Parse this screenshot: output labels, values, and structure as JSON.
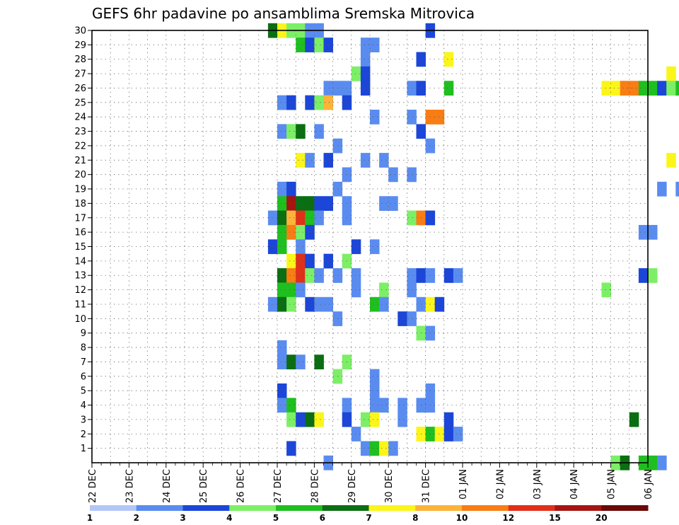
{
  "chart_data": {
    "type": "heatmap",
    "title": "GEFS 6hr padavine po ansamblima Sremska Mitrovica",
    "xlabel": "",
    "ylabel": "",
    "x_tick_labels": [
      "22 DEC",
      "23 DEC",
      "24 DEC",
      "25 DEC",
      "26 DEC",
      "27 DEC",
      "28 DEC",
      "29 DEC",
      "30 DEC",
      "31 DEC",
      "01 JAN",
      "02 JAN",
      "03 JAN",
      "04 JAN",
      "05 JAN",
      "06 JAN"
    ],
    "y_tick_labels": [
      "1",
      "2",
      "3",
      "4",
      "5",
      "6",
      "7",
      "8",
      "9",
      "10",
      "11",
      "12",
      "13",
      "14",
      "15",
      "16",
      "17",
      "18",
      "19",
      "20",
      "21",
      "22",
      "23",
      "24",
      "25",
      "26",
      "27",
      "28",
      "29",
      "30"
    ],
    "ylim": [
      0,
      30
    ],
    "steps_per_day": 4,
    "grid": true,
    "colorbar": {
      "labels": [
        "1",
        "2",
        "3",
        "4",
        "5",
        "6",
        "7",
        "8",
        "10",
        "12",
        "15",
        "20"
      ],
      "colors": [
        "#b3c7f7",
        "#5a8cf0",
        "#1c46d8",
        "#7cef66",
        "#1fbf1f",
        "#0b6e12",
        "#fbf51a",
        "#fcb33a",
        "#f87d14",
        "#e0301a",
        "#a51512",
        "#6a0908"
      ]
    },
    "cells": [
      [
        19,
        30,
        5
      ],
      [
        20,
        30,
        6
      ],
      [
        21,
        30,
        3
      ],
      [
        22,
        30,
        3
      ],
      [
        23,
        30,
        1
      ],
      [
        24,
        30,
        1
      ],
      [
        36,
        30,
        2
      ],
      [
        68,
        30,
        1
      ],
      [
        82,
        30,
        6
      ],
      [
        22,
        29,
        4
      ],
      [
        23,
        29,
        2
      ],
      [
        24,
        29,
        3
      ],
      [
        25,
        29,
        2
      ],
      [
        29,
        29,
        1
      ],
      [
        30,
        29,
        1
      ],
      [
        29,
        28,
        1
      ],
      [
        35,
        28,
        2
      ],
      [
        38,
        28,
        6
      ],
      [
        74,
        28,
        3
      ],
      [
        28,
        27,
        3
      ],
      [
        29,
        27,
        2
      ],
      [
        62,
        27,
        6
      ],
      [
        78,
        27,
        1
      ],
      [
        25,
        26,
        1
      ],
      [
        26,
        26,
        1
      ],
      [
        27,
        26,
        1
      ],
      [
        29,
        26,
        2
      ],
      [
        34,
        26,
        1
      ],
      [
        35,
        26,
        2
      ],
      [
        38,
        26,
        4
      ],
      [
        55,
        26,
        6
      ],
      [
        56,
        26,
        6
      ],
      [
        57,
        26,
        8
      ],
      [
        58,
        26,
        8
      ],
      [
        59,
        26,
        4
      ],
      [
        60,
        26,
        4
      ],
      [
        61,
        26,
        2
      ],
      [
        62,
        26,
        3
      ],
      [
        63,
        26,
        4
      ],
      [
        64,
        26,
        2
      ],
      [
        65,
        26,
        1
      ],
      [
        66,
        26,
        6
      ],
      [
        67,
        26,
        5
      ],
      [
        68,
        26,
        5
      ],
      [
        69,
        26,
        5
      ],
      [
        70,
        26,
        2
      ],
      [
        72,
        26,
        1
      ],
      [
        87,
        26,
        2
      ],
      [
        20,
        25,
        1
      ],
      [
        21,
        25,
        2
      ],
      [
        23,
        25,
        2
      ],
      [
        24,
        25,
        3
      ],
      [
        25,
        25,
        7
      ],
      [
        27,
        25,
        2
      ],
      [
        30,
        24,
        1
      ],
      [
        34,
        24,
        1
      ],
      [
        36,
        24,
        8
      ],
      [
        37,
        24,
        8
      ],
      [
        82,
        24,
        1
      ],
      [
        83,
        24,
        1
      ],
      [
        20,
        23,
        1
      ],
      [
        21,
        23,
        3
      ],
      [
        22,
        23,
        5
      ],
      [
        24,
        23,
        1
      ],
      [
        35,
        23,
        2
      ],
      [
        26,
        22,
        1
      ],
      [
        36,
        22,
        1
      ],
      [
        22,
        21,
        6
      ],
      [
        23,
        21,
        1
      ],
      [
        25,
        21,
        2
      ],
      [
        29,
        21,
        1
      ],
      [
        31,
        21,
        1
      ],
      [
        62,
        21,
        6
      ],
      [
        78,
        21,
        1
      ],
      [
        27,
        20,
        1
      ],
      [
        32,
        20,
        1
      ],
      [
        34,
        20,
        1
      ],
      [
        64,
        20,
        1
      ],
      [
        74,
        20,
        1
      ],
      [
        75,
        20,
        3
      ],
      [
        20,
        19,
        1
      ],
      [
        21,
        19,
        2
      ],
      [
        26,
        19,
        1
      ],
      [
        61,
        19,
        1
      ],
      [
        63,
        19,
        1
      ],
      [
        64,
        19,
        1
      ],
      [
        75,
        19,
        3
      ],
      [
        76,
        19,
        4
      ],
      [
        77,
        19,
        3
      ],
      [
        20,
        18,
        4
      ],
      [
        21,
        18,
        10
      ],
      [
        22,
        18,
        5
      ],
      [
        23,
        18,
        5
      ],
      [
        24,
        18,
        2
      ],
      [
        25,
        18,
        2
      ],
      [
        27,
        18,
        1
      ],
      [
        31,
        18,
        1
      ],
      [
        32,
        18,
        1
      ],
      [
        19,
        17,
        1
      ],
      [
        20,
        17,
        5
      ],
      [
        21,
        17,
        7
      ],
      [
        22,
        17,
        9
      ],
      [
        23,
        17,
        4
      ],
      [
        24,
        17,
        1
      ],
      [
        27,
        17,
        1
      ],
      [
        34,
        17,
        3
      ],
      [
        35,
        17,
        8
      ],
      [
        36,
        17,
        2
      ],
      [
        65,
        17,
        1
      ],
      [
        68,
        17,
        1
      ],
      [
        20,
        16,
        4
      ],
      [
        21,
        16,
        8
      ],
      [
        22,
        16,
        3
      ],
      [
        23,
        16,
        2
      ],
      [
        59,
        16,
        1
      ],
      [
        60,
        16,
        1
      ],
      [
        85,
        16,
        1
      ],
      [
        86,
        16,
        2
      ],
      [
        19,
        15,
        2
      ],
      [
        20,
        15,
        4
      ],
      [
        22,
        15,
        1
      ],
      [
        28,
        15,
        2
      ],
      [
        30,
        15,
        1
      ],
      [
        64,
        15,
        2
      ],
      [
        84,
        15,
        2
      ],
      [
        21,
        14,
        6
      ],
      [
        22,
        14,
        9
      ],
      [
        23,
        14,
        2
      ],
      [
        25,
        14,
        2
      ],
      [
        27,
        14,
        3
      ],
      [
        65,
        14,
        3
      ],
      [
        84,
        14,
        1
      ],
      [
        85,
        14,
        6
      ],
      [
        20,
        13,
        5
      ],
      [
        21,
        13,
        8
      ],
      [
        22,
        13,
        9
      ],
      [
        23,
        13,
        3
      ],
      [
        24,
        13,
        1
      ],
      [
        26,
        13,
        1
      ],
      [
        28,
        13,
        1
      ],
      [
        34,
        13,
        1
      ],
      [
        35,
        13,
        2
      ],
      [
        36,
        13,
        1
      ],
      [
        38,
        13,
        2
      ],
      [
        39,
        13,
        1
      ],
      [
        59,
        13,
        2
      ],
      [
        60,
        13,
        3
      ],
      [
        20,
        12,
        4
      ],
      [
        21,
        12,
        4
      ],
      [
        22,
        12,
        1
      ],
      [
        28,
        12,
        1
      ],
      [
        31,
        12,
        3
      ],
      [
        34,
        12,
        1
      ],
      [
        55,
        12,
        3
      ],
      [
        19,
        11,
        1
      ],
      [
        20,
        11,
        5
      ],
      [
        21,
        11,
        3
      ],
      [
        23,
        11,
        2
      ],
      [
        24,
        11,
        1
      ],
      [
        25,
        11,
        1
      ],
      [
        30,
        11,
        4
      ],
      [
        31,
        11,
        1
      ],
      [
        35,
        11,
        1
      ],
      [
        36,
        11,
        6
      ],
      [
        37,
        11,
        2
      ],
      [
        71,
        11,
        7
      ],
      [
        72,
        11,
        1
      ],
      [
        26,
        10,
        1
      ],
      [
        33,
        10,
        2
      ],
      [
        34,
        10,
        1
      ],
      [
        35,
        9,
        3
      ],
      [
        36,
        9,
        1
      ],
      [
        20,
        8,
        1
      ],
      [
        20,
        7,
        1
      ],
      [
        21,
        7,
        5
      ],
      [
        22,
        7,
        1
      ],
      [
        24,
        7,
        5
      ],
      [
        27,
        7,
        3
      ],
      [
        64,
        7,
        2
      ],
      [
        65,
        7,
        1
      ],
      [
        69,
        7,
        4
      ],
      [
        74,
        7,
        2
      ],
      [
        75,
        7,
        2
      ],
      [
        76,
        7,
        1
      ],
      [
        26,
        6,
        3
      ],
      [
        30,
        6,
        1
      ],
      [
        66,
        6,
        7
      ],
      [
        67,
        6,
        1
      ],
      [
        84,
        6,
        2
      ],
      [
        20,
        5,
        2
      ],
      [
        30,
        5,
        1
      ],
      [
        36,
        5,
        1
      ],
      [
        77,
        5,
        1
      ],
      [
        78,
        5,
        10
      ],
      [
        79,
        5,
        2
      ],
      [
        20,
        4,
        1
      ],
      [
        21,
        4,
        4
      ],
      [
        27,
        4,
        1
      ],
      [
        30,
        4,
        1
      ],
      [
        31,
        4,
        1
      ],
      [
        33,
        4,
        1
      ],
      [
        35,
        4,
        1
      ],
      [
        36,
        4,
        1
      ],
      [
        79,
        4,
        10
      ],
      [
        21,
        3,
        3
      ],
      [
        22,
        3,
        2
      ],
      [
        23,
        3,
        5
      ],
      [
        24,
        3,
        6
      ],
      [
        27,
        3,
        2
      ],
      [
        29,
        3,
        3
      ],
      [
        30,
        3,
        6
      ],
      [
        33,
        3,
        1
      ],
      [
        38,
        3,
        2
      ],
      [
        58,
        3,
        5
      ],
      [
        28,
        2,
        1
      ],
      [
        35,
        2,
        6
      ],
      [
        36,
        2,
        4
      ],
      [
        37,
        2,
        6
      ],
      [
        38,
        2,
        2
      ],
      [
        39,
        2,
        1
      ],
      [
        86,
        2,
        1
      ],
      [
        21,
        1,
        2
      ],
      [
        29,
        1,
        1
      ],
      [
        30,
        1,
        4
      ],
      [
        31,
        1,
        6
      ],
      [
        32,
        1,
        1
      ],
      [
        69,
        1,
        2
      ],
      [
        70,
        1,
        1
      ],
      [
        87,
        1,
        1
      ],
      [
        25,
        0,
        1
      ],
      [
        56,
        0,
        3
      ],
      [
        57,
        0,
        5
      ],
      [
        59,
        0,
        4
      ],
      [
        60,
        0,
        4
      ],
      [
        61,
        0,
        1
      ]
    ]
  }
}
